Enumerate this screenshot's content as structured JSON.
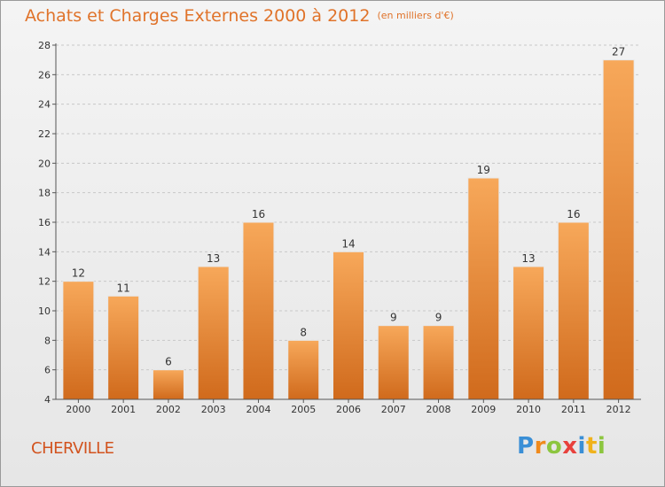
{
  "title": "Achats et Charges Externes 2000 à 2012",
  "unit_note": "(en milliers d'€)",
  "commune": "CHERVILLE",
  "logo": {
    "letters": [
      "P",
      "r",
      "o",
      "x",
      "i",
      "t",
      "i"
    ],
    "colors": [
      "#3a8fd6",
      "#f08a1c",
      "#8cc63f",
      "#e8413c",
      "#3a8fd6",
      "#f0b21c",
      "#8cc63f"
    ]
  },
  "colors": {
    "bar_light": "#f7a85a",
    "bar_dark": "#d06a1c",
    "axis": "#555555",
    "grid": "#c8c8c8"
  },
  "chart_data": {
    "type": "bar",
    "categories": [
      "2000",
      "2001",
      "2002",
      "2003",
      "2004",
      "2005",
      "2006",
      "2007",
      "2008",
      "2009",
      "2010",
      "2011",
      "2012"
    ],
    "values": [
      12,
      11,
      6,
      13,
      16,
      8,
      14,
      9,
      9,
      19,
      13,
      16,
      27
    ],
    "ylim": [
      4,
      28
    ],
    "yticks": [
      4,
      6,
      8,
      10,
      12,
      14,
      16,
      18,
      20,
      22,
      24,
      26,
      28
    ],
    "grid": true
  }
}
